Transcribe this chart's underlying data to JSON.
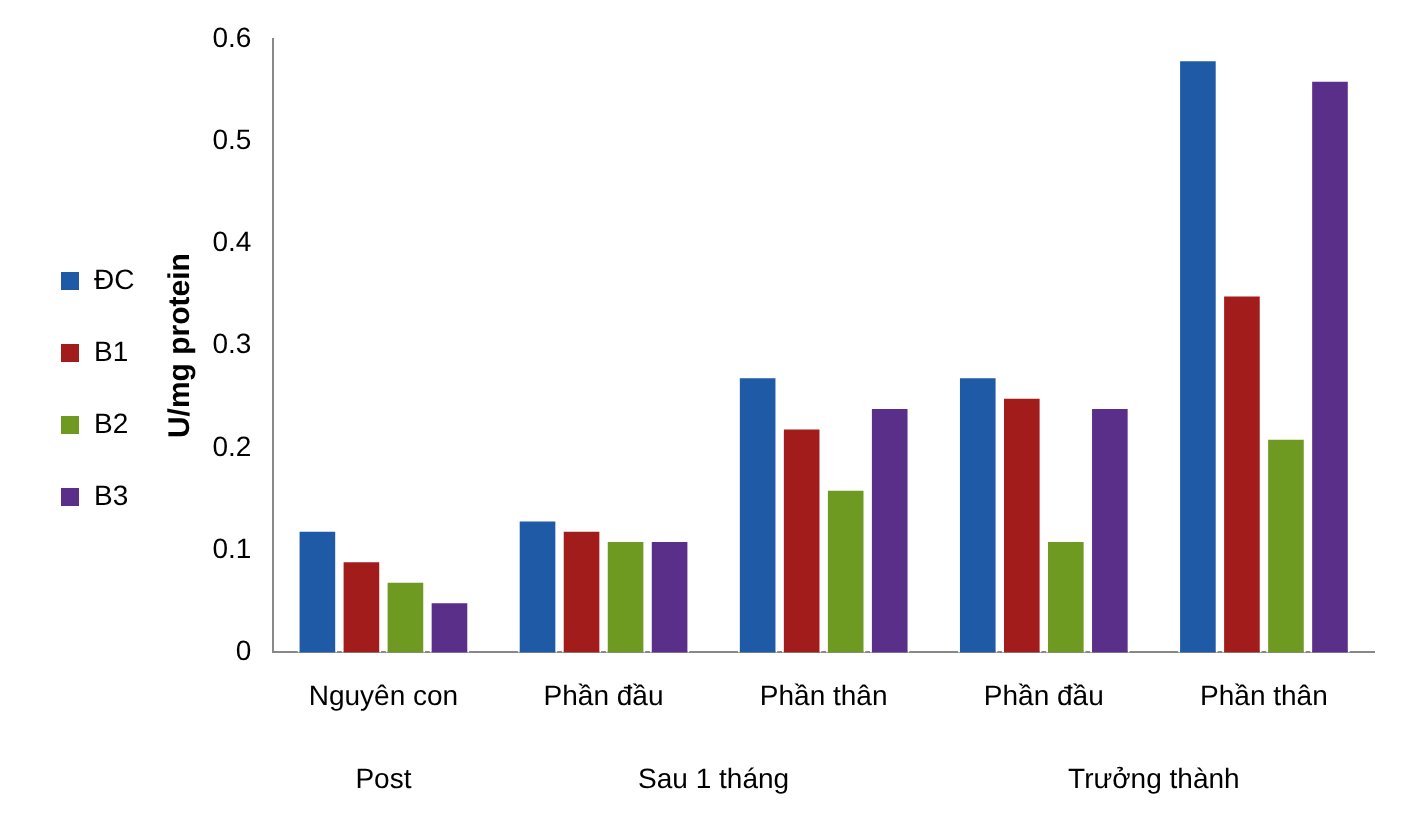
{
  "chart_data": {
    "type": "bar",
    "ylabel": "U/mg protein",
    "categories": [
      "Nguyên con",
      "Phần đầu",
      "Phần thân",
      "Phần đầu",
      "Phần thân"
    ],
    "series": [
      {
        "name": "ĐC",
        "color": "#1f5aa6",
        "values": [
          0.12,
          0.13,
          0.27,
          0.27,
          0.58
        ]
      },
      {
        "name": "B1",
        "color": "#a31c1c",
        "values": [
          0.09,
          0.12,
          0.22,
          0.25,
          0.35
        ]
      },
      {
        "name": "B2",
        "color": "#6f9a22",
        "values": [
          0.07,
          0.11,
          0.16,
          0.11,
          0.21
        ]
      },
      {
        "name": "B3",
        "color": "#5a2f8a",
        "values": [
          0.05,
          0.11,
          0.24,
          0.24,
          0.56
        ]
      }
    ],
    "ylim": [
      0,
      0.6
    ],
    "yticks": [
      0,
      0.1,
      0.2,
      0.3,
      0.4,
      0.5,
      0.6
    ],
    "grid": false,
    "legend": "left",
    "annotations": [
      "Post",
      "Sau 1 tháng",
      "Trưởng thành"
    ]
  }
}
